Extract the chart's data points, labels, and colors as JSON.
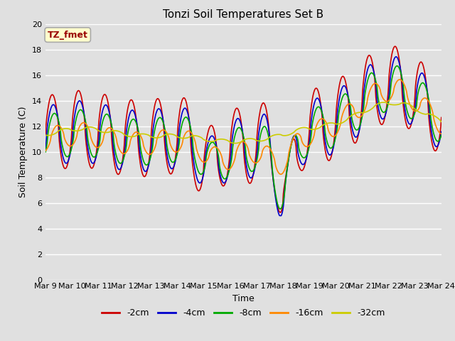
{
  "title": "Tonzi Soil Temperatures Set B",
  "xlabel": "Time",
  "ylabel": "Soil Temperature (C)",
  "ylim": [
    0,
    20
  ],
  "xlim_days": 15,
  "bg_color": "#e0e0e0",
  "grid_color": "#ffffff",
  "annotation_text": "TZ_fmet",
  "annotation_bg": "#ffffcc",
  "annotation_edge": "#aaaaaa",
  "annotation_fc": "#990000",
  "xtick_labels": [
    "Mar 9",
    "Mar 10",
    "Mar 11",
    "Mar 12",
    "Mar 13",
    "Mar 14",
    "Mar 15",
    "Mar 16",
    "Mar 17",
    "Mar 18",
    "Mar 19",
    "Mar 20",
    "Mar 21",
    "Mar 22",
    "Mar 23",
    "Mar 24"
  ],
  "ytick_vals": [
    0,
    2,
    4,
    6,
    8,
    10,
    12,
    14,
    16,
    18,
    20
  ],
  "series_colors": {
    "-2cm": "#cc0000",
    "-4cm": "#0000cc",
    "-8cm": "#00aa00",
    "-16cm": "#ff8800",
    "-32cm": "#cccc00"
  },
  "legend_order": [
    "-2cm",
    "-4cm",
    "-8cm",
    "-16cm",
    "-32cm"
  ],
  "line_width": 1.2,
  "title_fontsize": 11,
  "label_fontsize": 9,
  "tick_fontsize": 8,
  "legend_fontsize": 9
}
